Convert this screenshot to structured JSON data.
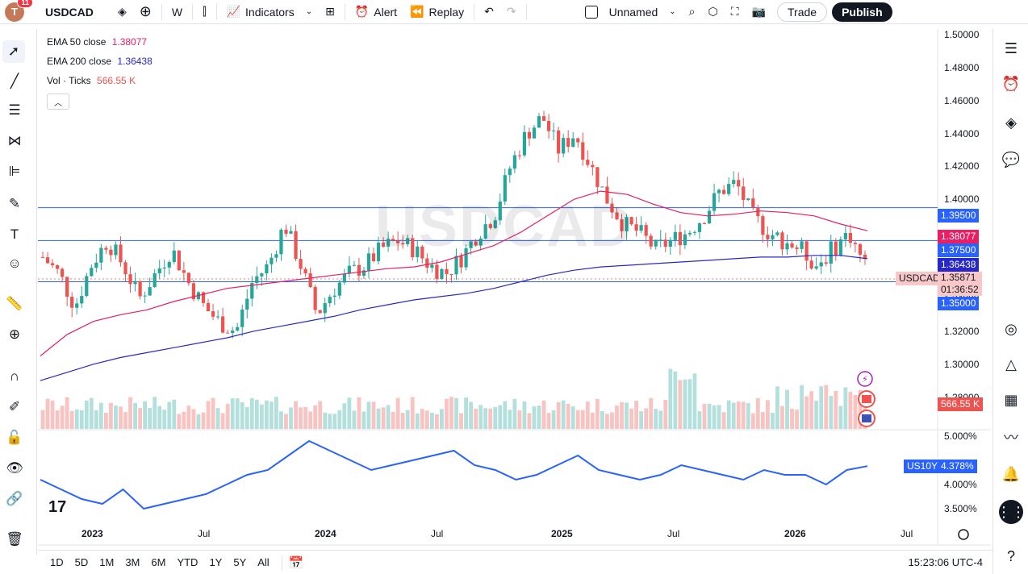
{
  "header": {
    "avatar_letter": "T",
    "notification_count": "11",
    "symbol": "USDCAD",
    "interval": "W",
    "indicators_label": "Indicators",
    "alert_label": "Alert",
    "replay_label": "Replay",
    "layout_name": "Unnamed",
    "trade_label": "Trade",
    "publish_label": "Publish"
  },
  "legend": {
    "ema50_label": "EMA 50 close",
    "ema50_value": "1.38077",
    "ema200_label": "EMA 200 close",
    "ema200_value": "1.36438",
    "vol_label": "Vol · Ticks",
    "vol_value": "566.55 K"
  },
  "watermark": "USDCAD",
  "price_axis": [
    "1.50000",
    "1.48000",
    "1.46000",
    "1.44000",
    "1.42000",
    "1.40000",
    "1.36000",
    "1.34000",
    "1.32000",
    "1.30000",
    "1.28000"
  ],
  "indicator_axis": [
    "5.000%",
    "4.000%",
    "3.500%"
  ],
  "price_labels": {
    "line_high": "1.39500",
    "ema50": "1.38077",
    "line_mid": "1.37500",
    "ema200": "1.36438",
    "symbol_tag": "USDCAD",
    "last_price": "1.35871",
    "countdown": "01:36:52",
    "line_low": "1.35000",
    "volume": "566.55 K",
    "us10y_tag": "US10Y",
    "us10y_value": "4.378%"
  },
  "time_axis": [
    "2023",
    "Jul",
    "2024",
    "Jul",
    "2025",
    "Jul",
    "2026",
    "Jul"
  ],
  "ranges": [
    "1D",
    "5D",
    "1M",
    "3M",
    "6M",
    "YTD",
    "1Y",
    "5Y",
    "All"
  ],
  "clock": "15:23:06 UTC-4",
  "colors": {
    "up": "#26a69a",
    "down": "#ef5350",
    "ema50": "#e91e63",
    "ema200": "#2828c8",
    "hline": "#2962ff",
    "us10y": "#2962ff"
  },
  "chart_data": {
    "type": "line",
    "price_scale": [
      1.27,
      1.5
    ],
    "horizontal_levels": [
      1.395,
      1.375,
      1.35
    ],
    "ema50_points": [
      1.305,
      1.318,
      1.326,
      1.33,
      1.333,
      1.338,
      1.342,
      1.346,
      1.348,
      1.35,
      1.352,
      1.354,
      1.356,
      1.358,
      1.359,
      1.362,
      1.367,
      1.372,
      1.38,
      1.39,
      1.4,
      1.405,
      1.403,
      1.397,
      1.392,
      1.39,
      1.391,
      1.393,
      1.392,
      1.39,
      1.385,
      1.381
    ],
    "ema200_points": [
      1.29,
      1.295,
      1.3,
      1.304,
      1.307,
      1.31,
      1.313,
      1.316,
      1.32,
      1.323,
      1.326,
      1.329,
      1.333,
      1.336,
      1.339,
      1.341,
      1.343,
      1.346,
      1.35,
      1.354,
      1.357,
      1.359,
      1.36,
      1.361,
      1.362,
      1.363,
      1.364,
      1.365,
      1.365,
      1.366,
      1.366,
      1.364
    ],
    "us10y_points": [
      4.1,
      3.9,
      3.7,
      3.6,
      3.9,
      3.5,
      3.6,
      3.7,
      3.8,
      4.0,
      4.2,
      4.3,
      4.6,
      4.9,
      4.7,
      4.5,
      4.3,
      4.4,
      4.5,
      4.6,
      4.7,
      4.4,
      4.3,
      4.1,
      4.2,
      4.4,
      4.6,
      4.3,
      4.2,
      4.1,
      4.2,
      4.4,
      4.3,
      4.2,
      4.1,
      4.3,
      4.2,
      4.2,
      4.0,
      4.3,
      4.38
    ]
  }
}
